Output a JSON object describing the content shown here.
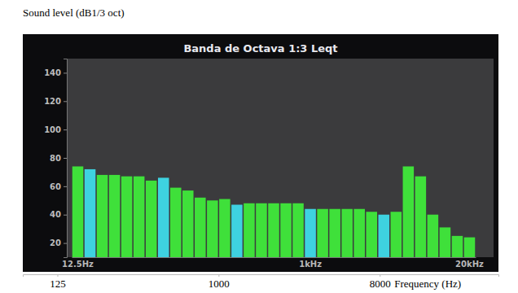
{
  "chart_data": {
    "type": "bar",
    "title": "Banda de Octava 1:3 Leqt",
    "ylabel": "Sound level (dB1/3 oct)",
    "xlabel": "Frequency (Hz)",
    "categories": [
      "12.5Hz",
      null,
      null,
      null,
      null,
      null,
      null,
      null,
      null,
      null,
      null,
      null,
      null,
      null,
      null,
      null,
      null,
      null,
      null,
      "1kHz",
      null,
      null,
      null,
      null,
      null,
      null,
      null,
      null,
      null,
      null,
      null,
      null,
      "20kHz"
    ],
    "values": [
      74,
      72,
      68,
      68,
      67,
      67,
      64,
      66,
      59,
      57,
      52,
      50,
      51,
      47,
      48,
      48,
      48,
      48,
      48,
      44,
      44,
      44,
      44,
      44,
      42,
      40,
      42,
      74,
      67,
      40,
      31,
      25,
      24
    ],
    "colors": [
      "#3fe03a",
      "#3ed2e0",
      "#3fe03a",
      "#3fe03a",
      "#3fe03a",
      "#3fe03a",
      "#3fe03a",
      "#3ed2e0",
      "#3fe03a",
      "#3fe03a",
      "#3fe03a",
      "#3fe03a",
      "#3fe03a",
      "#3ed2e0",
      "#3fe03a",
      "#3fe03a",
      "#3fe03a",
      "#3fe03a",
      "#3fe03a",
      "#3ed2e0",
      "#3fe03a",
      "#3fe03a",
      "#3fe03a",
      "#3fe03a",
      "#3fe03a",
      "#3ed2e0",
      "#3fe03a",
      "#3fe03a",
      "#3fe03a",
      "#3fe03a",
      "#3fe03a",
      "#3fe03a",
      "#3fe03a"
    ],
    "ylim": [
      10,
      150
    ],
    "yticks": [
      20,
      40,
      60,
      80,
      100,
      120,
      140
    ],
    "xlim": [
      80,
      37000
    ],
    "xticks": [
      125,
      1000,
      8000
    ],
    "log": "x"
  }
}
